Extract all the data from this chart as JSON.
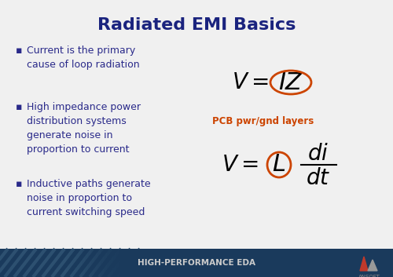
{
  "title": "Radiated EMI Basics",
  "title_color": "#1a237e",
  "title_fontsize": 16,
  "bullet_color": "#2a2a8a",
  "bullet_fontsize": 9.0,
  "bullets": [
    "Current is the primary\ncause of loop radiation",
    "High impedance power\ndistribution systems\ngenerate noise in\nproportion to current",
    "Inductive paths generate\nnoise in proportion to\ncurrent switching speed"
  ],
  "eq2_label": "PCB pwr/gnd layers",
  "eq2_label_color": "#cc4400",
  "circle_color": "#cc4400",
  "footer_bg": "#1a3a5c",
  "footer_text": "High-Performance EDA",
  "footer_text_color": "#cccccc",
  "bg_color": "#f0f0f0",
  "bullet_marker": "▪"
}
